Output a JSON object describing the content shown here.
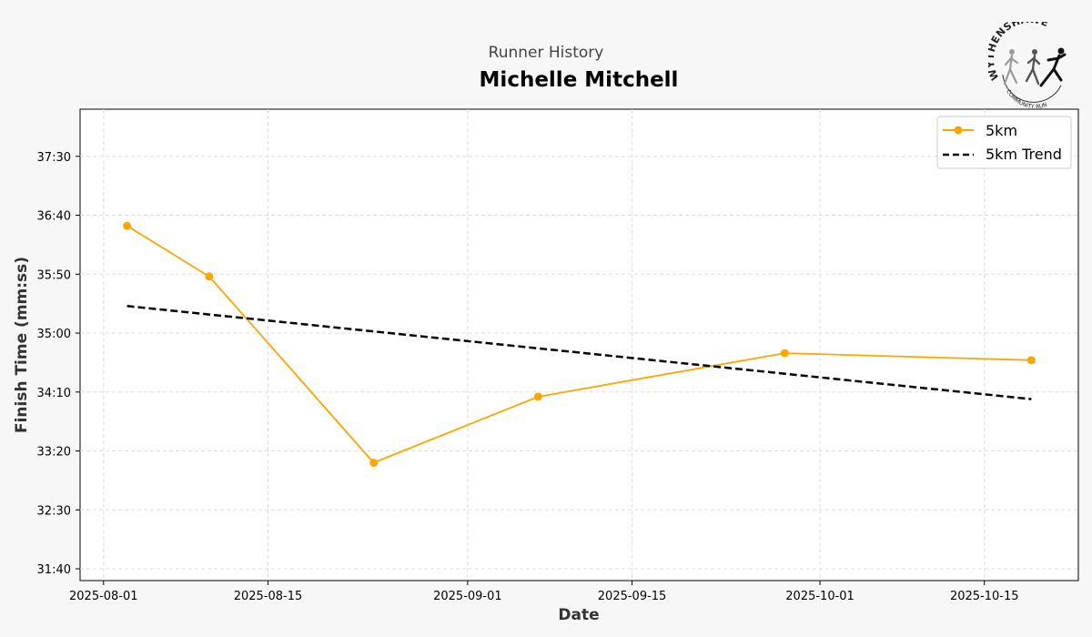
{
  "header": {
    "subtitle": "Runner History",
    "runner_name": "Michelle Mitchell"
  },
  "logo": {
    "top_text": "WYTHENSHAWE",
    "bottom_text": "COMMUNITY RUN",
    "icon": "runners-logo-icon"
  },
  "chart_data": {
    "type": "line",
    "title": "Michelle Mitchell",
    "subtitle": "Runner History",
    "xlabel": "Date",
    "ylabel": "Finish Time (mm:ss)",
    "x_ticks": [
      "2025-08-01",
      "2025-08-15",
      "2025-09-01",
      "2025-09-15",
      "2025-10-01",
      "2025-10-15"
    ],
    "y_ticks": [
      "31:40",
      "32:30",
      "33:20",
      "34:10",
      "35:00",
      "35:50",
      "36:40",
      "37:30"
    ],
    "xlim": [
      "2025-07-30",
      "2025-10-23"
    ],
    "ylim": [
      "31:30",
      "38:10"
    ],
    "grid": true,
    "legend_position": "top-right",
    "series": [
      {
        "name": "5km",
        "style": "solid-with-markers",
        "color": "#FFA500",
        "points": [
          {
            "x": "2025-08-03",
            "y": "36:31"
          },
          {
            "x": "2025-08-10",
            "y": "35:48"
          },
          {
            "x": "2025-08-24",
            "y": "33:10"
          },
          {
            "x": "2025-09-07",
            "y": "34:06"
          },
          {
            "x": "2025-09-28",
            "y": "34:43"
          },
          {
            "x": "2025-10-19",
            "y": "34:37"
          }
        ]
      },
      {
        "name": "5km Trend",
        "style": "dashed",
        "color": "#000000",
        "points": [
          {
            "x": "2025-08-03",
            "y": "35:23"
          },
          {
            "x": "2025-10-19",
            "y": "34:04"
          }
        ]
      }
    ]
  }
}
